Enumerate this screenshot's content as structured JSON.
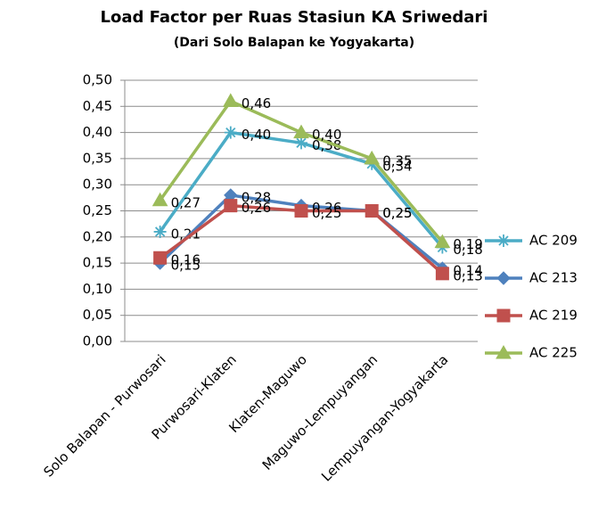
{
  "chart_data": {
    "type": "line",
    "title": "Load Factor per Ruas Stasiun KA Sriwedari",
    "subtitle": "(Dari Solo Balapan ke Yogyakarta)",
    "categories": [
      "Solo Balapan - Purwosari",
      "Purwosari-Klaten",
      "Klaten-Maguwo",
      "Maguwo-Lempuyangan",
      "Lempuyangan-Yogyakarta"
    ],
    "series": [
      {
        "name": "AC 209",
        "color": "#4bacc6",
        "marker": "star",
        "values": [
          0.21,
          0.4,
          0.38,
          0.34,
          0.18
        ],
        "value_labels": [
          "0,21",
          "0,40",
          "0,38",
          "0,34",
          "0,18"
        ]
      },
      {
        "name": "AC 213",
        "color": "#4f81bd",
        "marker": "diamond",
        "values": [
          0.15,
          0.28,
          0.26,
          0.25,
          0.14
        ],
        "value_labels": [
          "0,15",
          "0,28",
          "0,26",
          "0,25",
          "0,14"
        ]
      },
      {
        "name": "AC 219",
        "color": "#c0504d",
        "marker": "square",
        "values": [
          0.16,
          0.26,
          0.25,
          0.25,
          0.13
        ],
        "value_labels": [
          "0,16",
          "0,26",
          "0,25",
          "0,25",
          "0,13"
        ]
      },
      {
        "name": "AC 225",
        "color": "#9bbb59",
        "marker": "triangle",
        "values": [
          0.27,
          0.46,
          0.4,
          0.35,
          0.19
        ],
        "value_labels": [
          "0,27",
          "0,46",
          "0,40",
          "0,35",
          "0,19"
        ]
      }
    ],
    "ylim": [
      0,
      0.5
    ],
    "yticks": [
      {
        "value": 0,
        "label": "0,00"
      },
      {
        "value": 0.05,
        "label": "0,05"
      },
      {
        "value": 0.1,
        "label": "0,10"
      },
      {
        "value": 0.15,
        "label": "0,15"
      },
      {
        "value": 0.2,
        "label": "0,20"
      },
      {
        "value": 0.25,
        "label": "0,25"
      },
      {
        "value": 0.3,
        "label": "0,30"
      },
      {
        "value": 0.35,
        "label": "0,35"
      },
      {
        "value": 0.4,
        "label": "0,40"
      },
      {
        "value": 0.45,
        "label": "0,45"
      },
      {
        "value": 0.5,
        "label": "0,50"
      }
    ],
    "grid": true,
    "legend": "right"
  }
}
